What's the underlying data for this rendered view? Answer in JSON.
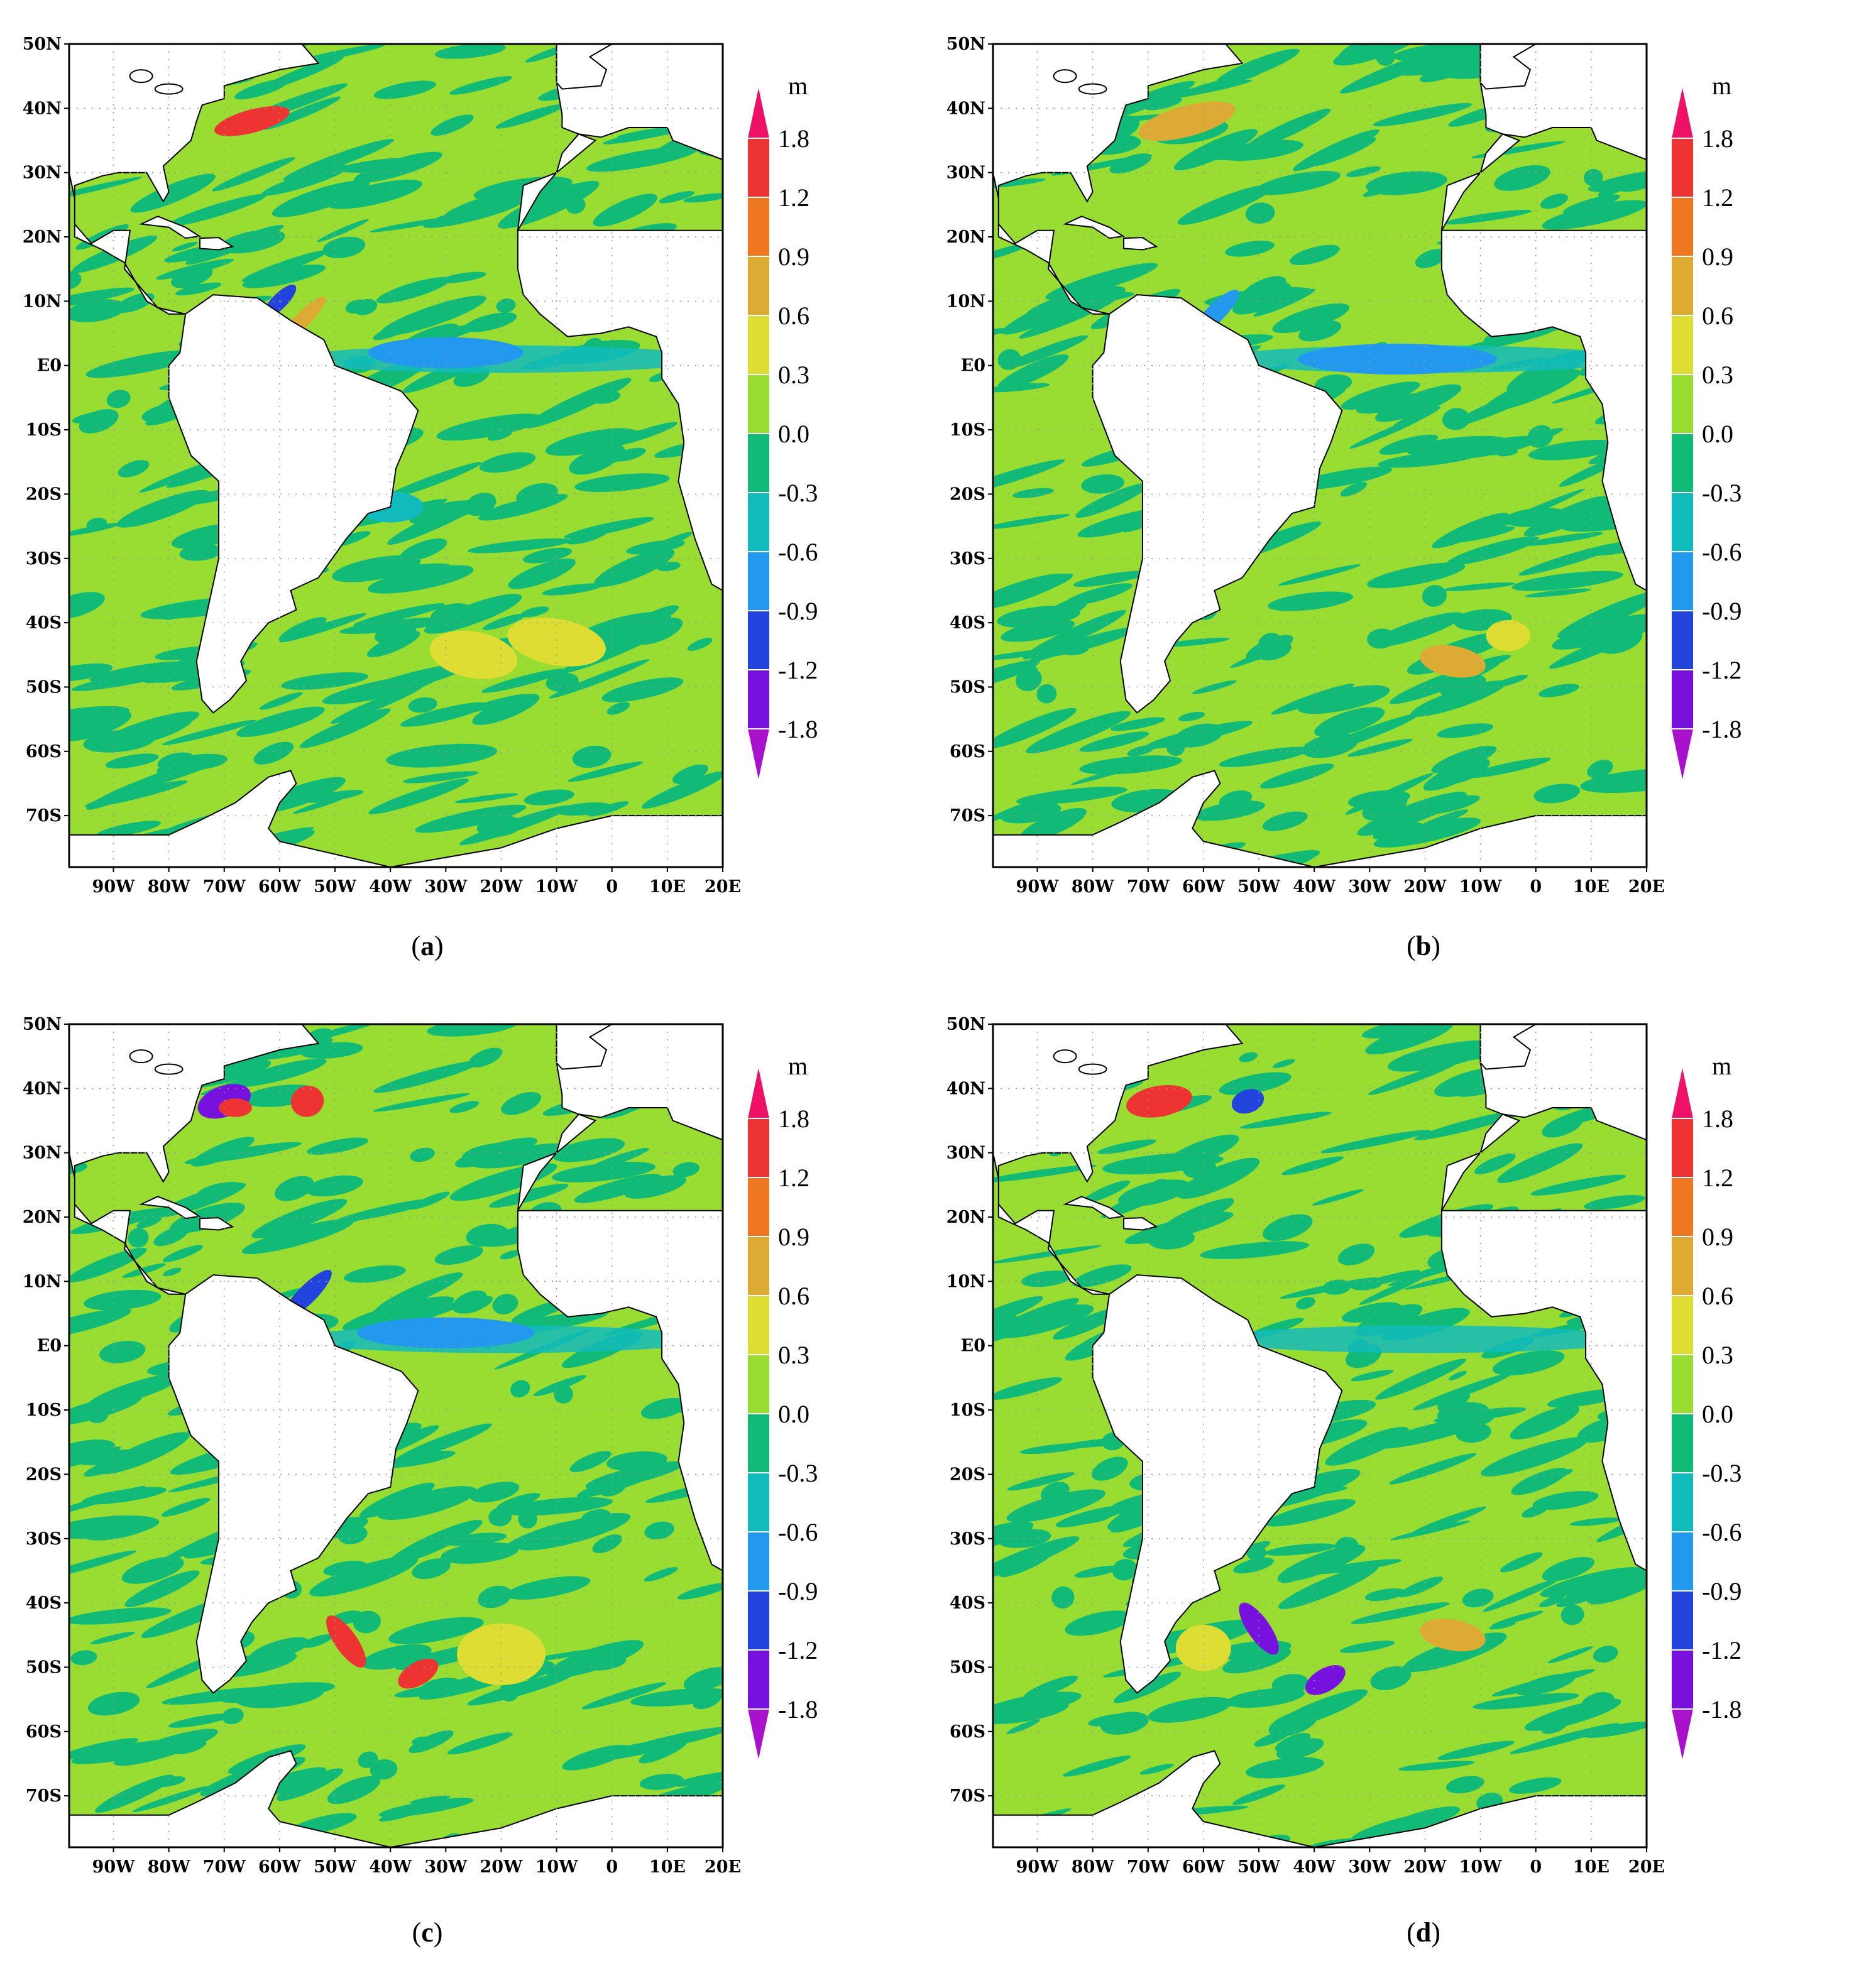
{
  "colorbar": {
    "unit": "m",
    "levels": [
      "1.8",
      "1.2",
      "0.9",
      "0.6",
      "0.3",
      "0.0",
      "-0.3",
      "-0.6",
      "-0.9",
      "-1.2",
      "-1.8"
    ],
    "colors": [
      "#ee1166",
      "#ee3333",
      "#ee7722",
      "#ddaa33",
      "#dddd33",
      "#99dd33",
      "#11bb77",
      "#11bbbb",
      "#2299ee",
      "#2244dd",
      "#7711dd",
      "#aa11cc"
    ]
  },
  "axes": {
    "lat_labels": [
      "50N",
      "40N",
      "30N",
      "20N",
      "10N",
      "E0",
      "10S",
      "20S",
      "30S",
      "40S",
      "50S",
      "60S",
      "70S"
    ],
    "lon_labels": [
      "90W",
      "80W",
      "70W",
      "60W",
      "50W",
      "40W",
      "30W",
      "20W",
      "10W",
      "0",
      "10E",
      "20E"
    ],
    "lat_range": [
      -78,
      50
    ],
    "lon_range": [
      -98,
      20
    ]
  },
  "panels": [
    {
      "id": "a",
      "caption_open": "(",
      "caption_letter": "a",
      "caption_close": ")"
    },
    {
      "id": "b",
      "caption_open": "(",
      "caption_letter": "b",
      "caption_close": ")"
    },
    {
      "id": "c",
      "caption_open": "(",
      "caption_letter": "c",
      "caption_close": ")"
    },
    {
      "id": "d",
      "caption_open": "(",
      "caption_letter": "d",
      "caption_close": ")"
    }
  ],
  "map_colors": {
    "ocean_base": "#99dd33",
    "ocean_neg": "#11bb77",
    "land": "#ffffff",
    "coast": "#000000"
  }
}
